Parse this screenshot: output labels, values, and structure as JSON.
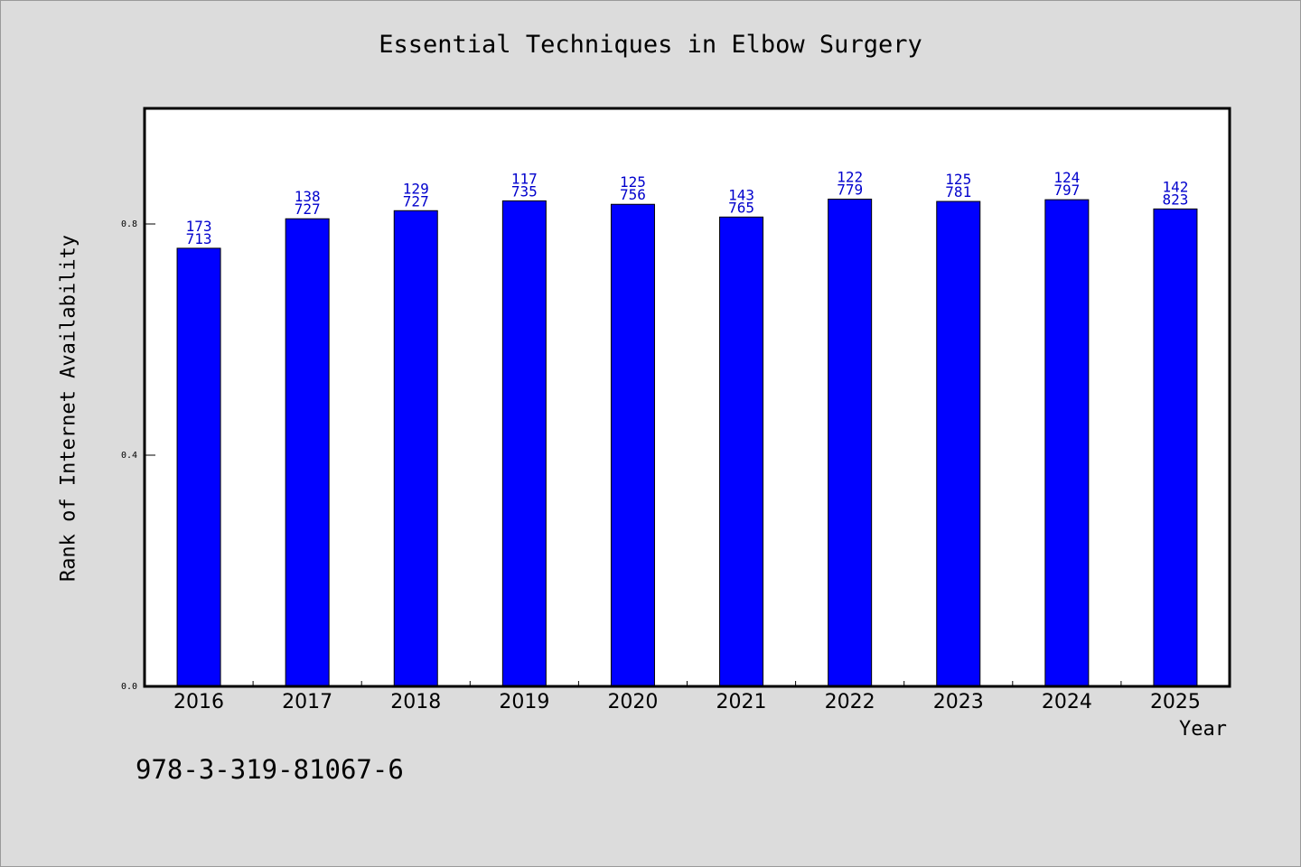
{
  "chart_data": {
    "type": "bar",
    "title": "Essential Techniques in Elbow Surgery",
    "xlabel": "Year",
    "ylabel": "Rank of Internet Availability",
    "categories": [
      "2016",
      "2017",
      "2018",
      "2019",
      "2020",
      "2021",
      "2022",
      "2023",
      "2024",
      "2025"
    ],
    "series": [
      {
        "values": [
          0.758,
          0.809,
          0.823,
          0.84,
          0.834,
          0.812,
          0.843,
          0.839,
          0.842,
          0.826
        ],
        "label_top": [
          "173",
          "138",
          "129",
          "117",
          "125",
          "143",
          "122",
          "125",
          "124",
          "142"
        ],
        "label_bottom": [
          "713",
          "727",
          "727",
          "735",
          "756",
          "765",
          "779",
          "781",
          "797",
          "823"
        ]
      }
    ],
    "ylim": [
      0,
      1.0
    ],
    "yticks": [
      "0.0",
      "0.4",
      "0.8"
    ],
    "ytick_values": [
      0.0,
      0.4,
      0.8
    ],
    "grid": false,
    "colors": {
      "bar": "#0000ff",
      "bar_outline": "#000000",
      "data_label": "#0000cc",
      "plot_background": "#ffffff",
      "page_background": "#dcdcdc"
    }
  },
  "footer": {
    "isbn": "978-3-319-81067-6"
  }
}
